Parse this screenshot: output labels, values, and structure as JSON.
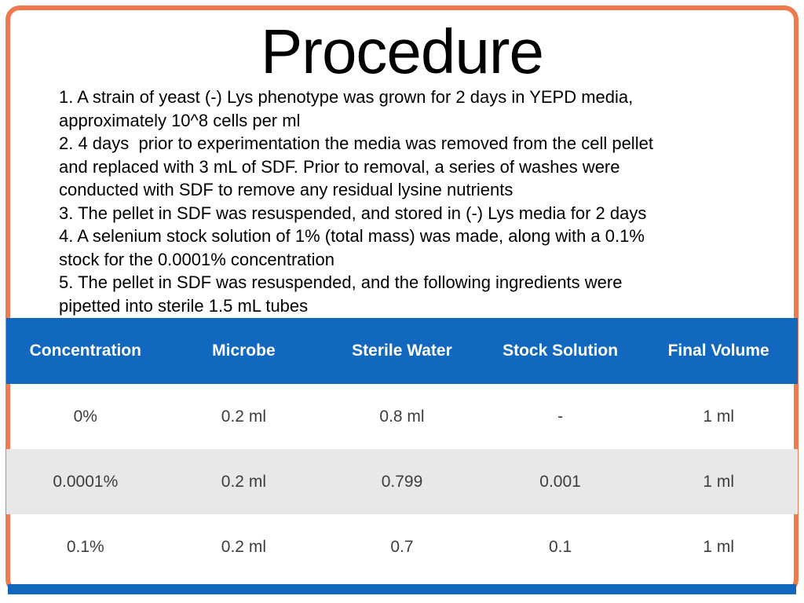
{
  "slide": {
    "title": "Procedure",
    "body_lines": [
      "1. A strain of yeast (-) Lys phenotype was grown for 2 days in YEPD media,",
      "approximately 10^8 cells per ml",
      "2. 4 days  prior to experimentation the media was removed from the cell pellet",
      "and replaced with 3 mL of SDF. Prior to removal, a series of washes were",
      "conducted with SDF to remove any residual lysine nutrients",
      "3. The pellet in SDF was resuspended, and stored in (-) Lys media for 2 days",
      "4. A selenium stock solution of 1% (total mass) was made, along with a 0.1%",
      "stock for the 0.0001% concentration",
      "5. The pellet in SDF was resuspended, and the following ingredients were",
      "pipetted into sterile 1.5 mL tubes"
    ]
  },
  "table": {
    "headers": [
      "Concentration",
      "Microbe",
      "Sterile Water",
      "Stock Solution",
      "Final Volume"
    ],
    "rows": [
      [
        "0%",
        "0.2 ml",
        "0.8 ml",
        "-",
        "1 ml"
      ],
      [
        "0.0001%",
        "0.2 ml",
        "0.799",
        "0.001",
        "1 ml"
      ],
      [
        "0.1%",
        "0.2 ml",
        "0.7",
        "0.1",
        "1 ml"
      ]
    ]
  },
  "colors": {
    "table_header_blue": "#1268BE",
    "banded_row_gray": "#E8E8EB",
    "frame_orange": "#F0794E",
    "bottom_bar_blue": "#1268BE",
    "header_text": "#FFFFFF",
    "body_text": "#000000"
  }
}
